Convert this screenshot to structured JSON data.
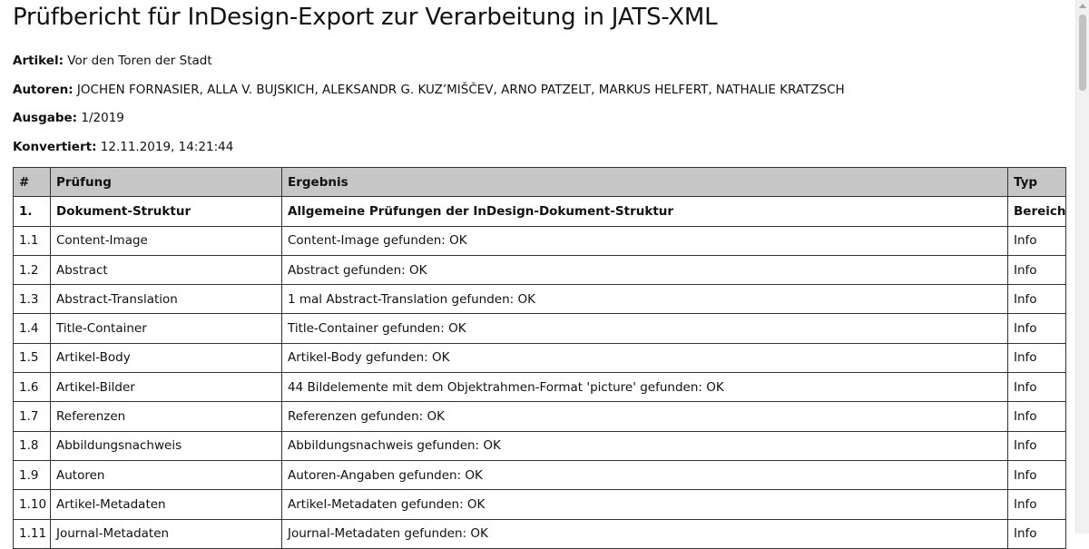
{
  "document": {
    "title": "Prüfbericht für InDesign-Export zur Verarbeitung in JATS-XML",
    "meta": [
      {
        "label": "Artikel:",
        "value": "Vor den Toren der Stadt"
      },
      {
        "label": "Autoren:",
        "value": "JOCHEN FORNASIER, ALLA V. BUJSKICH, ALEKSANDR G. KUZ’MIŠČEV, ARNO PATZELT, MARKUS HELFERT, NATHALIE KRATZSCH"
      },
      {
        "label": "Ausgabe:",
        "value": "1/2019"
      },
      {
        "label": "Konvertiert:",
        "value": "12.11.2019, 14:21:44"
      }
    ]
  },
  "table": {
    "headers": [
      "#",
      "Prüfung",
      "Ergebnis",
      "Typ"
    ],
    "rows": [
      {
        "num": "1.",
        "check": "Dokument-Struktur",
        "result": "Allgemeine Prüfungen der InDesign-Dokument-Struktur",
        "type": "Bereich",
        "section": true
      },
      {
        "num": "1.1",
        "check": "Content-Image",
        "result": "Content-Image gefunden: OK",
        "type": "Info"
      },
      {
        "num": "1.2",
        "check": "Abstract",
        "result": "Abstract gefunden: OK",
        "type": "Info"
      },
      {
        "num": "1.3",
        "check": "Abstract-Translation",
        "result": "1 mal Abstract-Translation gefunden: OK",
        "type": "Info"
      },
      {
        "num": "1.4",
        "check": "Title-Container",
        "result": "Title-Container gefunden: OK",
        "type": "Info"
      },
      {
        "num": "1.5",
        "check": "Artikel-Body",
        "result": "Artikel-Body gefunden: OK",
        "type": "Info"
      },
      {
        "num": "1.6",
        "check": "Artikel-Bilder",
        "result": "44 Bildelemente mit dem Objektrahmen-Format 'picture' gefunden: OK",
        "type": "Info"
      },
      {
        "num": "1.7",
        "check": "Referenzen",
        "result": "Referenzen gefunden: OK",
        "type": "Info"
      },
      {
        "num": "1.8",
        "check": "Abbildungsnachweis",
        "result": "Abbildungsnachweis gefunden: OK",
        "type": "Info"
      },
      {
        "num": "1.9",
        "check": "Autoren",
        "result": "Autoren-Angaben gefunden: OK",
        "type": "Info"
      },
      {
        "num": "1.10",
        "check": "Artikel-Metadaten",
        "result": "Artikel-Metadaten gefunden: OK",
        "type": "Info"
      },
      {
        "num": "1.11",
        "check": "Journal-Metadaten",
        "result": "Journal-Metadaten gefunden: OK",
        "type": "Info"
      }
    ]
  }
}
